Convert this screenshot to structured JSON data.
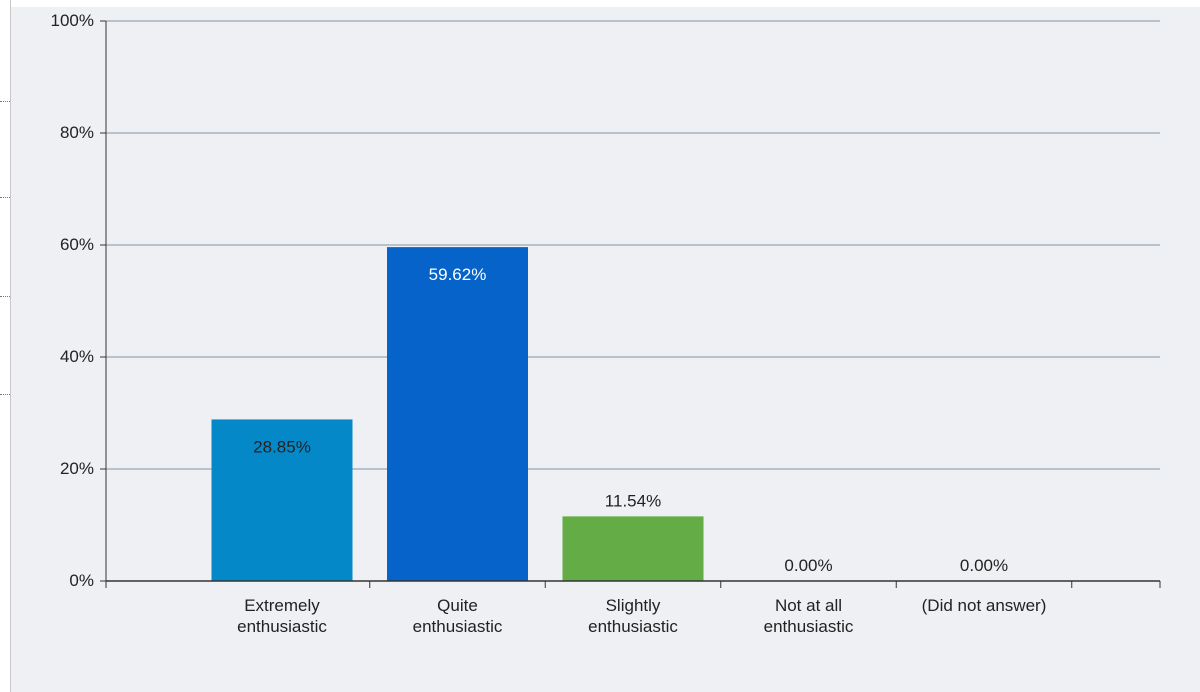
{
  "chart_data": {
    "type": "bar",
    "title": "",
    "xlabel": "",
    "ylabel": "",
    "ylim": [
      0,
      100
    ],
    "y_ticks": [
      0,
      20,
      40,
      60,
      80,
      100
    ],
    "y_tick_labels": [
      "0%",
      "20%",
      "40%",
      "60%",
      "80%",
      "100%"
    ],
    "grid": true,
    "legend": "none",
    "categories": [
      [
        "Extremely",
        "enthusiastic"
      ],
      [
        "Quite",
        "enthusiastic"
      ],
      [
        "Slightly",
        "enthusiastic"
      ],
      [
        "Not at all",
        "enthusiastic"
      ],
      [
        "(Did not answer)"
      ]
    ],
    "values": [
      28.85,
      59.62,
      11.54,
      0.0,
      0.0
    ],
    "value_labels": [
      "28.85%",
      "59.62%",
      "11.54%",
      "0.00%",
      "0.00%"
    ],
    "colors": [
      "#0588c8",
      "#0563c9",
      "#64ad46",
      "#999999",
      "#999999"
    ],
    "plot_background": "#eef0f3",
    "gridline_color": "#7f96a8",
    "axis_color": "#333333"
  }
}
